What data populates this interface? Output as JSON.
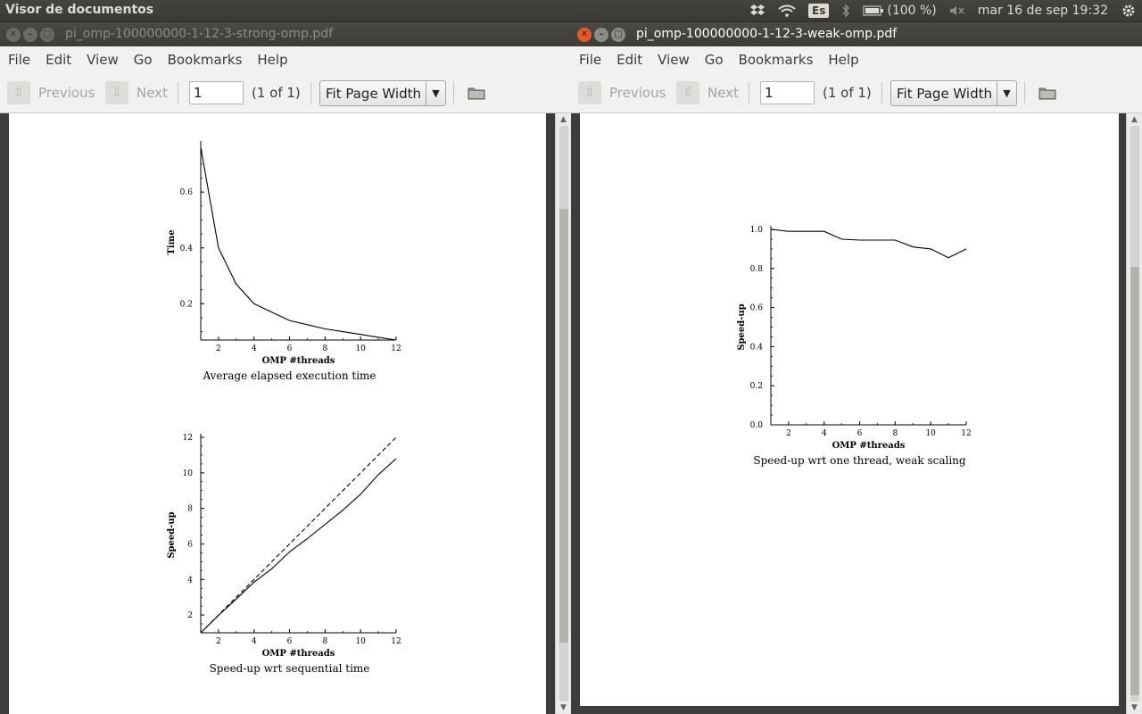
{
  "topbar": {
    "app_title": "Visor de documentos",
    "language": "Es",
    "battery": "(100 %)",
    "datetime": "mar 16 de sep 19:32",
    "icons": [
      "dropbox-icon",
      "wifi-icon",
      "bluetooth-icon",
      "battery-icon",
      "volume-muted-icon",
      "settings-gear-icon"
    ]
  },
  "left_window": {
    "title": "pi_omp-100000000-1-12-3-strong-omp.pdf",
    "menu": [
      "File",
      "Edit",
      "View",
      "Go",
      "Bookmarks",
      "Help"
    ],
    "toolbar": {
      "previous": "Previous",
      "next": "Next",
      "page_value": "1",
      "page_count": "(1 of 1)",
      "zoom": "Fit Page Width"
    }
  },
  "right_window": {
    "title": "pi_omp-100000000-1-12-3-weak-omp.pdf",
    "menu": [
      "File",
      "Edit",
      "View",
      "Go",
      "Bookmarks",
      "Help"
    ],
    "toolbar": {
      "previous": "Previous",
      "next": "Next",
      "page_value": "1",
      "page_count": "(1 of 1)",
      "zoom": "Fit Page Width"
    }
  },
  "chart_data": [
    {
      "type": "line",
      "caption": "Average elapsed execution time",
      "xlabel": "OMP #threads",
      "ylabel": "Time",
      "xlim": [
        1,
        12
      ],
      "ylim": [
        0.07,
        0.77
      ],
      "xticks": [
        2,
        4,
        6,
        8,
        10,
        12
      ],
      "yticks": [
        0.2,
        0.4,
        0.6
      ],
      "series": [
        {
          "x": [
            1,
            2,
            3,
            4,
            5,
            6,
            7,
            8,
            9,
            10,
            11,
            12
          ],
          "y": [
            0.76,
            0.4,
            0.27,
            0.2,
            0.17,
            0.14,
            0.125,
            0.11,
            0.1,
            0.09,
            0.08,
            0.07
          ],
          "style": "solid"
        }
      ]
    },
    {
      "type": "line",
      "caption": "Speed-up wrt sequential time",
      "xlabel": "OMP #threads",
      "ylabel": "Speed-up",
      "xlim": [
        1,
        12
      ],
      "ylim": [
        1,
        12
      ],
      "xticks": [
        2,
        4,
        6,
        8,
        10,
        12
      ],
      "yticks": [
        2,
        4,
        6,
        8,
        10,
        12
      ],
      "series": [
        {
          "x": [
            1,
            2,
            3,
            4,
            5,
            6,
            7,
            8,
            9,
            10,
            11,
            12
          ],
          "y": [
            1,
            2,
            3,
            4,
            5,
            6,
            7,
            8,
            9,
            10,
            11,
            12
          ],
          "style": "dashed"
        },
        {
          "x": [
            1,
            2,
            3,
            4,
            5,
            6,
            7,
            8,
            9,
            10,
            11,
            12
          ],
          "y": [
            1,
            1.98,
            2.9,
            3.85,
            4.6,
            5.55,
            6.3,
            7.1,
            7.9,
            8.8,
            9.9,
            10.8
          ],
          "style": "solid"
        }
      ]
    },
    {
      "type": "line",
      "caption": "Speed-up wrt one thread, weak scaling",
      "xlabel": "OMP #threads",
      "ylabel": "Speed-up",
      "xlim": [
        1,
        12
      ],
      "ylim": [
        0,
        1
      ],
      "xticks": [
        2,
        4,
        6,
        8,
        10,
        12
      ],
      "yticks": [
        0.0,
        0.2,
        0.4,
        0.6,
        0.8,
        1.0
      ],
      "series": [
        {
          "x": [
            1,
            2,
            3,
            4,
            5,
            6,
            7,
            8,
            9,
            10,
            11,
            12
          ],
          "y": [
            1.0,
            0.99,
            0.99,
            0.99,
            0.95,
            0.945,
            0.945,
            0.945,
            0.91,
            0.9,
            0.855,
            0.9
          ],
          "style": "solid"
        }
      ]
    }
  ]
}
